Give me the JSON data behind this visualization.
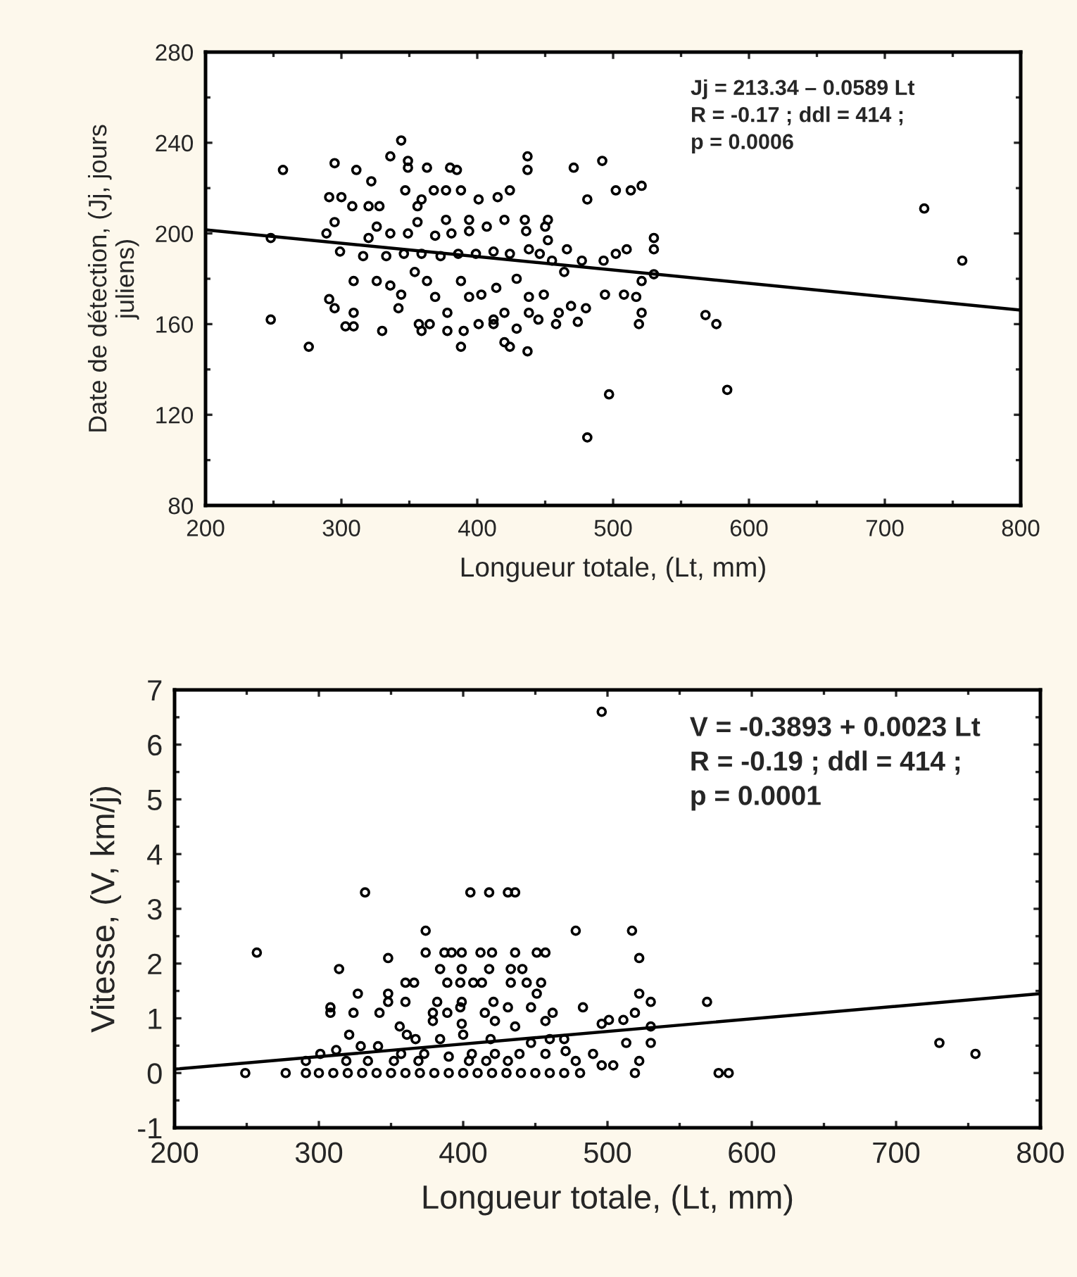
{
  "chart_data": [
    {
      "type": "scatter",
      "xlabel": "Longueur totale, (Lt, mm)",
      "ylabel": "Date de détection, (Jj, jours\njuliens)",
      "annotations": [
        "Jj = 213.34 – 0.0589 Lt\nR = -0.17 ; ddl = 414 ;\np = 0.0006"
      ],
      "xlim": [
        200,
        800
      ],
      "xticks": [
        200,
        300,
        400,
        500,
        600,
        700,
        800
      ],
      "ylim": [
        80,
        280
      ],
      "yticks": [
        80,
        120,
        160,
        200,
        240,
        280
      ],
      "grid": false,
      "legend": false,
      "marker": "circle",
      "series": [
        {
          "color": "#000000",
          "x": [
            248,
            257,
            248,
            276,
            295,
            311,
            322,
            336,
            344,
            349,
            349,
            363,
            380,
            385,
            437,
            437,
            471,
            492,
            481,
            502,
            513,
            521,
            729,
            757,
            497,
            481,
            584,
            568,
            576,
            437,
            388,
            291,
            300,
            289,
            295,
            291,
            295,
            303,
            309,
            309,
            330,
            309,
            326,
            336,
            342,
            344,
            347,
            357,
            359,
            365,
            378,
            390,
            401,
            412,
            420,
            424,
            429,
            445,
            458,
            460,
            469,
            474,
            480,
            494,
            508,
            517,
            519,
            521,
            521,
            530,
            530,
            530,
            510,
            502,
            493,
            477,
            466,
            452,
            452,
            450,
            436,
            435,
            424,
            415,
            401,
            388,
            377,
            368,
            359,
            356,
            328,
            320,
            308,
            326,
            320,
            336,
            349,
            369,
            381,
            394,
            407,
            420,
            394,
            377,
            356,
            299,
            316,
            333,
            346,
            359,
            373,
            386,
            399,
            412,
            424,
            438,
            446,
            455,
            464,
            354,
            363,
            369,
            378,
            388,
            394,
            403,
            414,
            429,
            438,
            438,
            449,
            412,
            420
          ],
          "values": [
            198,
            228,
            162,
            150,
            231,
            228,
            223,
            234,
            241,
            232,
            229,
            229,
            229,
            228,
            234,
            228,
            229,
            232,
            215,
            219,
            219,
            221,
            211,
            188,
            129,
            110,
            131,
            164,
            160,
            148,
            150,
            216,
            216,
            200,
            205,
            171,
            167,
            159,
            159,
            165,
            157,
            179,
            179,
            177,
            167,
            173,
            219,
            160,
            157,
            160,
            157,
            157,
            160,
            160,
            152,
            150,
            158,
            162,
            160,
            165,
            168,
            161,
            167,
            173,
            173,
            172,
            160,
            165,
            179,
            182,
            198,
            193,
            193,
            191,
            188,
            188,
            193,
            197,
            206,
            203,
            201,
            206,
            219,
            216,
            215,
            219,
            219,
            219,
            215,
            212,
            212,
            212,
            212,
            203,
            198,
            200,
            200,
            199,
            200,
            201,
            203,
            206,
            206,
            206,
            205,
            192,
            190,
            190,
            191,
            191,
            190,
            191,
            191,
            192,
            191,
            193,
            191,
            188,
            183,
            183,
            179,
            172,
            165,
            179,
            172,
            173,
            176,
            180,
            172,
            165,
            173,
            162,
            165
          ]
        },
        {
          "type": "line",
          "color": "#000000",
          "marker": "none",
          "line_style": "solid",
          "x": [
            200,
            800
          ],
          "values": [
            201.6,
            166.2
          ]
        }
      ]
    },
    {
      "type": "scatter",
      "xlabel": "Longueur totale, (Lt, mm)",
      "ylabel": "Vitesse, (V, km/j)",
      "annotations": [
        "V = -0.3893 + 0.0023 Lt\nR = -0.19 ; ddl = 414 ;\np = 0.0001"
      ],
      "xlim": [
        200,
        800
      ],
      "xticks": [
        200,
        300,
        400,
        500,
        600,
        700,
        800
      ],
      "ylim": [
        -1,
        7
      ],
      "yticks": [
        {
          "value": -1,
          "label": "-1"
        },
        0,
        1,
        2,
        3,
        4,
        5,
        6,
        7
      ],
      "grid": false,
      "legend": false,
      "marker": "circle",
      "series": [
        {
          "color": "#000000",
          "x": [
            249,
            277,
            257,
            332,
            405,
            418,
            431,
            436,
            496,
            374,
            478,
            517,
            348,
            374,
            387,
            392,
            399,
            412,
            420,
            436,
            451,
            457,
            522,
            314,
            384,
            399,
            418,
            433,
            441,
            360,
            366,
            389,
            398,
            407,
            413,
            433,
            444,
            454,
            327,
            348,
            451,
            522,
            348,
            360,
            382,
            399,
            421,
            530,
            569,
            308,
            308,
            324,
            342,
            379,
            389,
            398,
            415,
            431,
            447,
            462,
            483,
            519,
            379,
            399,
            422,
            436,
            457,
            496,
            501,
            511,
            530,
            321,
            356,
            361,
            367,
            384,
            400,
            419,
            447,
            460,
            470,
            513,
            530,
            730,
            755,
            312,
            329,
            341,
            357,
            373,
            390,
            406,
            422,
            439,
            457,
            471,
            490,
            496,
            504,
            522,
            478,
            291,
            301,
            319,
            334,
            352,
            369,
            404,
            416,
            431,
            519,
            577,
            584,
            291,
            300,
            310,
            320,
            330,
            340,
            350,
            360,
            370,
            380,
            390,
            400,
            410,
            420,
            430,
            440,
            450,
            460,
            470,
            481
          ],
          "values": [
            0,
            0,
            2.2,
            3.3,
            3.3,
            3.3,
            3.3,
            3.3,
            6.6,
            2.6,
            2.6,
            2.6,
            2.1,
            2.2,
            2.2,
            2.2,
            2.2,
            2.2,
            2.2,
            2.2,
            2.2,
            2.2,
            2.1,
            1.9,
            1.9,
            1.9,
            1.9,
            1.9,
            1.9,
            1.65,
            1.65,
            1.65,
            1.65,
            1.65,
            1.65,
            1.65,
            1.65,
            1.65,
            1.45,
            1.45,
            1.45,
            1.45,
            1.3,
            1.3,
            1.3,
            1.3,
            1.3,
            1.3,
            1.3,
            1.2,
            1.1,
            1.1,
            1.1,
            1.1,
            1.1,
            1.2,
            1.1,
            1.2,
            1.2,
            1.1,
            1.2,
            1.1,
            0.95,
            0.9,
            0.95,
            0.85,
            0.95,
            0.9,
            0.97,
            0.97,
            0.85,
            0.7,
            0.85,
            0.7,
            0.62,
            0.62,
            0.7,
            0.62,
            0.55,
            0.62,
            0.62,
            0.55,
            0.55,
            0.55,
            0.35,
            0.42,
            0.49,
            0.49,
            0.35,
            0.35,
            0.3,
            0.35,
            0.35,
            0.35,
            0.35,
            0.4,
            0.35,
            0.14,
            0.14,
            0.22,
            0.22,
            0.22,
            0.35,
            0.22,
            0.22,
            0.22,
            0.22,
            0.22,
            0.22,
            0.22,
            0,
            0,
            0,
            0,
            0,
            0,
            0,
            0,
            0,
            0,
            0,
            0,
            0,
            0,
            0,
            0,
            0,
            0,
            0,
            0,
            0,
            0,
            0
          ]
        },
        {
          "type": "line",
          "color": "#000000",
          "marker": "none",
          "line_style": "solid",
          "x": [
            200,
            800
          ],
          "values": [
            0.07,
            1.45
          ]
        }
      ]
    }
  ]
}
